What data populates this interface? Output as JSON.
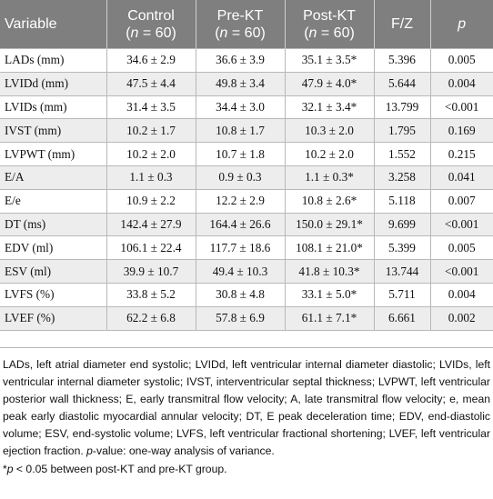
{
  "table": {
    "headers": [
      {
        "line1": "Variable",
        "line2": ""
      },
      {
        "line1": "Control",
        "line2": "(n = 60)"
      },
      {
        "line1": "Pre-KT",
        "line2": "(n = 60)"
      },
      {
        "line1": "Post-KT",
        "line2": "(n = 60)"
      },
      {
        "line1": "F/Z",
        "line2": ""
      },
      {
        "line1": "p",
        "line2": ""
      }
    ],
    "rows": [
      [
        "LADs (mm)",
        "34.6 ± 2.9",
        "36.6 ± 3.9",
        "35.1 ± 3.5*",
        "5.396",
        "0.005"
      ],
      [
        "LVIDd (mm)",
        "47.5 ± 4.4",
        "49.8 ± 3.4",
        "47.9 ± 4.0*",
        "5.644",
        "0.004"
      ],
      [
        "LVIDs (mm)",
        "31.4 ± 3.5",
        "34.4 ± 3.0",
        "32.1 ± 3.4*",
        "13.799",
        "<0.001"
      ],
      [
        "IVST (mm)",
        "10.2 ± 1.7",
        "10.8 ± 1.7",
        "10.3 ± 2.0",
        "1.795",
        "0.169"
      ],
      [
        "LVPWT (mm)",
        "10.2 ± 2.0",
        "10.7 ± 1.8",
        "10.2 ± 2.0",
        "1.552",
        "0.215"
      ],
      [
        "E/A",
        "1.1 ± 0.3",
        "0.9 ± 0.3",
        "1.1 ± 0.3*",
        "3.258",
        "0.041"
      ],
      [
        "E/e",
        "10.9 ± 2.2",
        "12.2 ± 2.9",
        "10.8 ± 2.6*",
        "5.118",
        "0.007"
      ],
      [
        "DT (ms)",
        "142.4 ± 27.9",
        "164.4 ± 26.6",
        "150.0 ± 29.1*",
        "9.699",
        "<0.001"
      ],
      [
        "EDV (ml)",
        "106.1 ± 22.4",
        "117.7 ± 18.6",
        "108.1 ± 21.0*",
        "5.399",
        "0.005"
      ],
      [
        "ESV (ml)",
        "39.9 ± 10.7",
        "49.4 ± 10.3",
        "41.8 ± 10.3*",
        "13.744",
        "<0.001"
      ],
      [
        "LVFS (%)",
        "33.8 ± 5.2",
        "30.8 ± 4.8",
        "33.1 ± 5.0*",
        "5.711",
        "0.004"
      ],
      [
        "LVEF (%)",
        "62.2 ± 6.8",
        "57.8 ± 6.9",
        "61.1 ± 7.1*",
        "6.661",
        "0.002"
      ]
    ]
  },
  "notes": {
    "abbreviations": "LADs, left atrial diameter end systolic; LVIDd, left ventricular internal diameter diastolic; LVIDs, left ventricular internal diameter systolic; IVST, interventricular septal thickness; LVPWT, left ventricular posterior wall thickness; E, early transmitral flow velocity; A, late transmitral flow velocity; e, mean peak early diastolic myocardial annular velocity; DT, E peak deceleration time; EDV, end-diastolic volume; ESV, end-systolic volume; LVFS, left ventricular fractional shortening; LVEF, left ventricular ejection fraction.",
    "pvalue_term": "p",
    "pvalue_text": "-value: one-way analysis of variance.",
    "footnote_prefix": "*",
    "footnote_p": "p",
    "footnote_text": " < 0.05 between post-KT and pre-KT group."
  }
}
